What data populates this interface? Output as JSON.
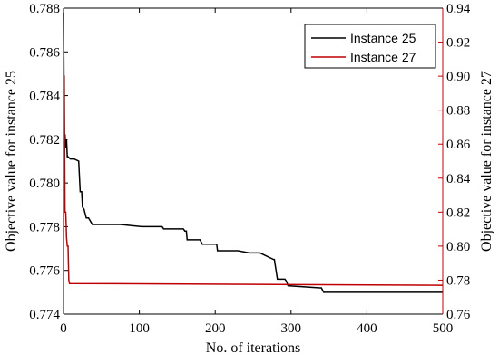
{
  "chart_data": {
    "type": "line",
    "title": "",
    "xlabel": "No. of iterations",
    "ylabel_left": "Objective value for instance 25",
    "ylabel_right": "Objective value for instance 27",
    "xlim": [
      0,
      500
    ],
    "ylim_left": [
      0.774,
      0.788
    ],
    "ylim_right": [
      0.76,
      0.94
    ],
    "x_ticks": [
      "0",
      "100",
      "200",
      "300",
      "400",
      "500"
    ],
    "y_left_ticks": [
      "0.774",
      "0.776",
      "0.778",
      "0.780",
      "0.782",
      "0.784",
      "0.786",
      "0.788"
    ],
    "y_right_ticks": [
      "0.76",
      "0.78",
      "0.80",
      "0.82",
      "0.84",
      "0.86",
      "0.88",
      "0.90",
      "0.92",
      "0.94"
    ],
    "grid": false,
    "legend_position": "top-right",
    "series": [
      {
        "name": "Instance 25",
        "axis": "left",
        "color": "#000000",
        "x": [
          0,
          1,
          2,
          3,
          4,
          5,
          6,
          9,
          12,
          14,
          20,
          22,
          24,
          25,
          27,
          30,
          33,
          38,
          75,
          103,
          130,
          132,
          158,
          160,
          162,
          163,
          180,
          183,
          185,
          202,
          203,
          230,
          245,
          256,
          259,
          277,
          278,
          282,
          285,
          292,
          294,
          296,
          338,
          340,
          343,
          500
        ],
        "y": [
          0.7878,
          0.7822,
          0.7822,
          0.7816,
          0.782,
          0.7812,
          0.7812,
          0.7811,
          0.7811,
          0.7811,
          0.781,
          0.7796,
          0.7796,
          0.7789,
          0.7788,
          0.7784,
          0.7784,
          0.7781,
          0.7781,
          0.778,
          0.778,
          0.7779,
          0.7779,
          0.7778,
          0.7778,
          0.7774,
          0.7774,
          0.7772,
          0.7772,
          0.7772,
          0.7769,
          0.7769,
          0.7768,
          0.7768,
          0.7768,
          0.7765,
          0.7765,
          0.7756,
          0.7756,
          0.7756,
          0.7755,
          0.7753,
          0.7752,
          0.7752,
          0.775,
          0.775
        ]
      },
      {
        "name": "Instance 27",
        "axis": "right",
        "color": "#c00000",
        "x": [
          0,
          1,
          2,
          3,
          4,
          5,
          6,
          7,
          8,
          500
        ],
        "y": [
          0.9,
          0.9,
          0.82,
          0.82,
          0.805,
          0.8,
          0.8,
          0.78,
          0.778,
          0.777
        ]
      }
    ]
  }
}
